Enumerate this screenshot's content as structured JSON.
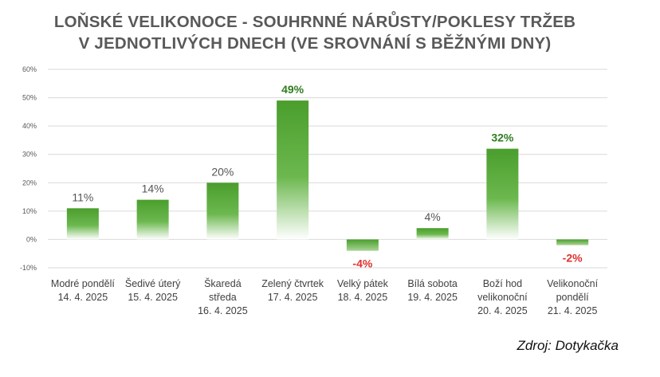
{
  "title_lines": [
    "LOŇSKÉ VELIKONOCE - SOUHRNNÉ NÁRŮSTY/POKLESY TRŽEB",
    "V JEDNOTLIVÝCH DNECH (VE SROVNÁNÍ S BĚŽNÝMI DNY)"
  ],
  "source": "Zdroj: Dotykačka",
  "colors": {
    "bar": "#4a9e2c",
    "positive_highlight": "#2e7d1e",
    "negative": "#e03030",
    "neutral_label": "#555555",
    "grid": "#d9d9d9"
  },
  "chart_data": {
    "type": "bar",
    "title": "LOŇSKÉ VELIKONOCE - SOUHRNNÉ NÁRŮSTY/POKLESY TRŽEB V JEDNOTLIVÝCH DNECH (VE SROVNÁNÍ S BĚŽNÝMI DNY)",
    "xlabel": "",
    "ylabel": "",
    "ylim": [
      -10,
      60
    ],
    "yticks": [
      -10,
      0,
      10,
      20,
      30,
      40,
      50,
      60
    ],
    "ytick_labels": [
      "-10%",
      "0%",
      "10%",
      "20%",
      "30%",
      "40%",
      "50%",
      "60%"
    ],
    "grid": true,
    "legend": "none",
    "categories": [
      [
        "Modré pondělí",
        "14. 4. 2025"
      ],
      [
        "Šedivé úterý",
        "15. 4. 2025"
      ],
      [
        "Škaredá",
        "středa",
        "16. 4. 2025"
      ],
      [
        "Zelený čtvrtek",
        "17. 4. 2025"
      ],
      [
        "Velký pátek",
        "18. 4. 2025"
      ],
      [
        "Bílá sobota",
        "19. 4. 2025"
      ],
      [
        "Boží hod",
        "velikonoční",
        "20. 4. 2025"
      ],
      [
        "Velikonoční",
        "pondělí",
        "21. 4. 2025"
      ]
    ],
    "values": [
      11,
      14,
      20,
      49,
      -4,
      4,
      32,
      -2
    ],
    "value_labels": [
      "11%",
      "14%",
      "20%",
      "49%",
      "-4%",
      "4%",
      "32%",
      "-2%"
    ],
    "highlighted": [
      false,
      false,
      false,
      true,
      false,
      false,
      true,
      false
    ]
  }
}
